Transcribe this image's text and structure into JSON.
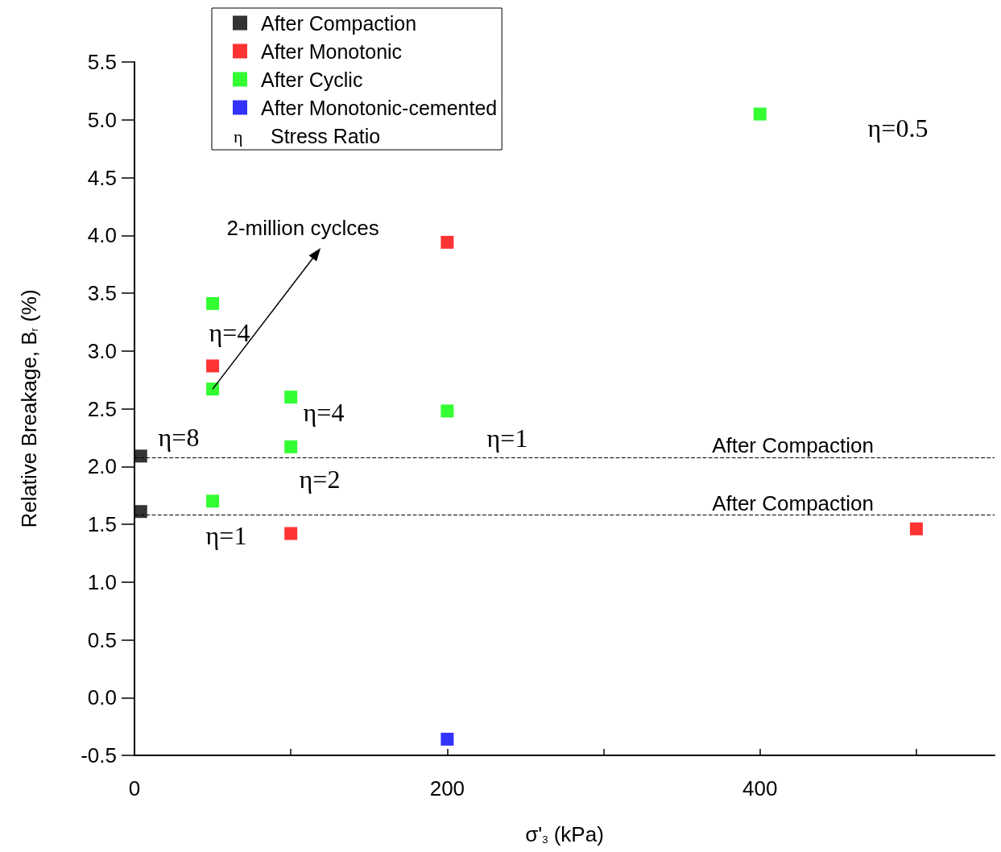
{
  "chart_data": {
    "type": "scatter",
    "xlabel": "σ'$_{3}$ (kPa)",
    "ylabel": "Relative Breakage, B$_{r}$ (%)",
    "xlim": [
      0,
      550
    ],
    "xticks": [
      0,
      {
        "value": 100,
        "label": null
      },
      200,
      {
        "value": 300,
        "label": null
      },
      400,
      {
        "value": 500,
        "label": null
      }
    ],
    "ylim": [
      -0.5,
      5.5
    ],
    "yticks": [
      -0.5,
      {
        "value": 0,
        "label": "0.0"
      },
      0.5,
      {
        "value": 1,
        "label": "1.0"
      },
      1.5,
      {
        "value": 2,
        "label": "2.0"
      },
      2.5,
      {
        "value": 3,
        "label": "3.0"
      },
      3.5,
      {
        "value": 4,
        "label": "4.0"
      },
      4.5,
      {
        "value": 5,
        "label": "5.0"
      },
      5.5
    ],
    "series": [
      {
        "name": "After Compaction",
        "color": "#000000",
        "x": [
          4,
          4
        ],
        "values": [
          2.09,
          1.61
        ]
      },
      {
        "name": "After Monotonic",
        "color": "#ff0000",
        "x": [
          50,
          100,
          200,
          500
        ],
        "values": [
          2.87,
          1.42,
          3.94,
          1.46
        ]
      },
      {
        "name": "After Cyclic",
        "color": "#00ff00",
        "x": [
          50,
          50,
          50,
          100,
          100,
          200,
          400
        ],
        "values": [
          3.41,
          2.67,
          1.7,
          2.6,
          2.17,
          2.48,
          5.05
        ]
      },
      {
        "name": "After Monotonic-cemented",
        "color": "#0000ff",
        "x": [
          200
        ],
        "values": [
          -0.36
        ]
      }
    ],
    "ref_lines": [
      {
        "axis": "y",
        "value": 2.08,
        "label": "After Compaction",
        "color": "#000000",
        "line_style": "dashed"
      },
      {
        "axis": "y",
        "value": 1.58,
        "label": "After Compaction",
        "color": "#000000",
        "line_style": "dashed"
      }
    ],
    "annotations": [
      "η  Stress Ratio",
      {
        "text": "2-million cyclces",
        "x": 50,
        "y": 2.67
      },
      "η=8",
      "η=4",
      "η=4",
      "η=2",
      "η=1",
      "η=1",
      "η=0.5"
    ],
    "marker": "square",
    "grid": false,
    "legend": "top"
  }
}
